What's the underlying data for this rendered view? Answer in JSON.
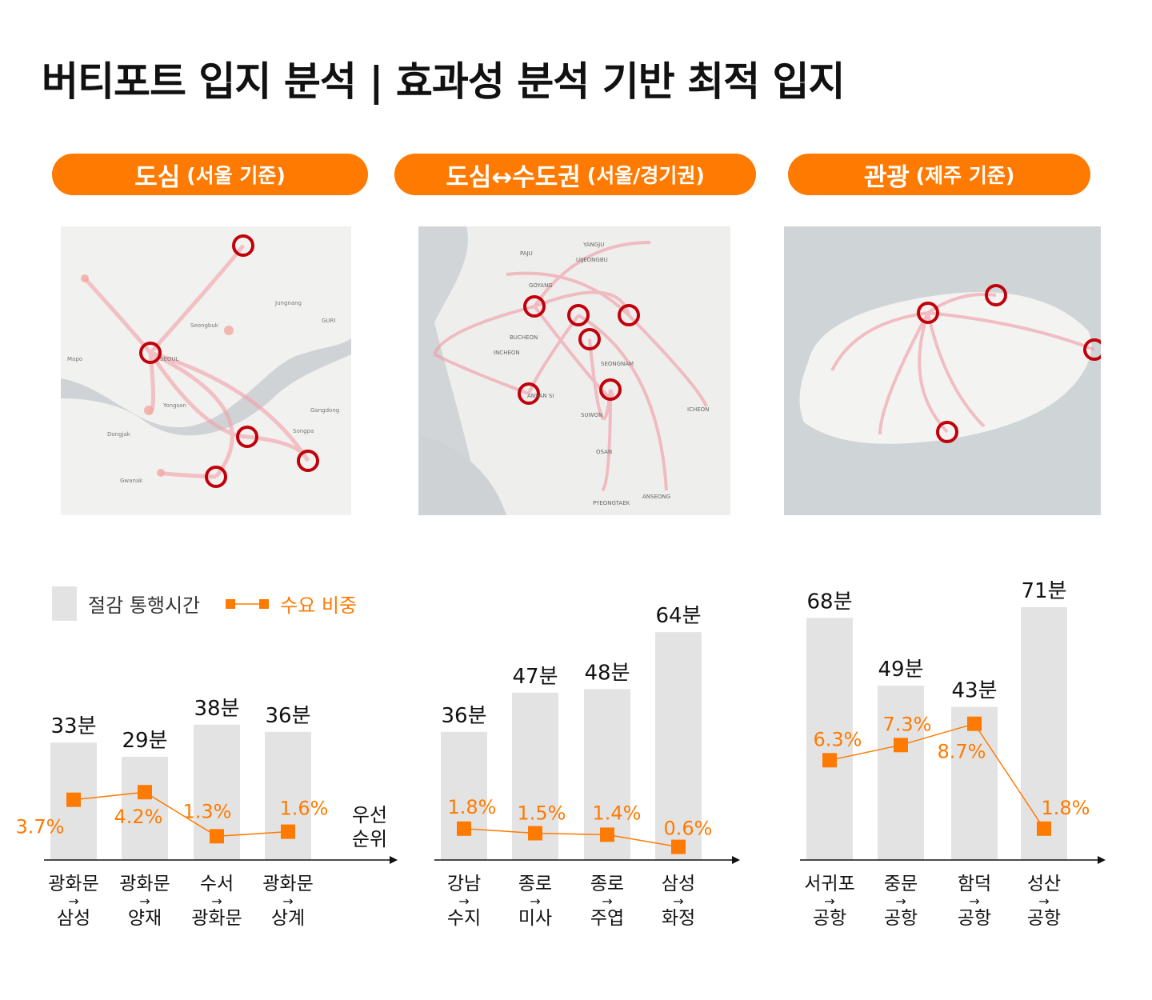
{
  "title": "버티포트 입지 분석 | 효과성 분석 기반 최적 입지",
  "sections": [
    {
      "label": "도심",
      "sub": "(서울 기준)"
    },
    {
      "label": "도심↔수도권",
      "sub": "(서울/경기권)"
    },
    {
      "label": "관광",
      "sub": "(제주 기준)"
    }
  ],
  "maps": [
    {
      "labels": [
        "GURI",
        "Jungnang",
        "Seongbuk",
        "Mapo",
        "Yongsan",
        "Dongjak",
        "Gwanak",
        "Songpa",
        "Gangdong",
        "SEOUL"
      ]
    },
    {
      "labels": [
        "PAJU",
        "YANGJU",
        "UIJEONGBU",
        "GOYANG",
        "BUCHEON",
        "INCHEON",
        "SEONGNAM",
        "ANSAN SI",
        "SUWON",
        "ICHEON",
        "OSAN",
        "PYEONGTAEK",
        "ANSEONG"
      ]
    },
    {
      "labels": []
    }
  ],
  "colors": {
    "accent": "#FF7A00",
    "bar": "#E3E3E3",
    "marker_ring": "#C0000B"
  },
  "legend": {
    "bar_label": "절감 통행시간",
    "line_label": "수요 비중"
  },
  "axis_label": [
    "우선",
    "순위"
  ],
  "chart_data": [
    {
      "type": "bar+line",
      "categories": [
        [
          "광화문",
          "삼성"
        ],
        [
          "광화문",
          "양재"
        ],
        [
          "수서",
          "광화문"
        ],
        [
          "광화문",
          "상계"
        ]
      ],
      "bar_series": {
        "name": "절감 통행시간",
        "unit": "분",
        "values": [
          33,
          29,
          38,
          36
        ]
      },
      "line_series": {
        "name": "수요 비중",
        "unit": "%",
        "values": [
          3.7,
          4.2,
          1.3,
          1.6
        ]
      }
    },
    {
      "type": "bar+line",
      "categories": [
        [
          "강남",
          "수지"
        ],
        [
          "종로",
          "미사"
        ],
        [
          "종로",
          "주엽"
        ],
        [
          "삼성",
          "화정"
        ]
      ],
      "bar_series": {
        "name": "절감 통행시간",
        "unit": "분",
        "values": [
          36,
          47,
          48,
          64
        ]
      },
      "line_series": {
        "name": "수요 비중",
        "unit": "%",
        "values": [
          1.8,
          1.5,
          1.4,
          0.6
        ]
      }
    },
    {
      "type": "bar+line",
      "categories": [
        [
          "서귀포",
          "공항"
        ],
        [
          "중문",
          "공항"
        ],
        [
          "함덕",
          "공항"
        ],
        [
          "성산",
          "공항"
        ]
      ],
      "bar_series": {
        "name": "절감 통행시간",
        "unit": "분",
        "values": [
          68,
          49,
          43,
          71
        ]
      },
      "line_series": {
        "name": "수요 비중",
        "unit": "%",
        "values": [
          6.3,
          7.3,
          8.7,
          1.8
        ]
      }
    }
  ]
}
